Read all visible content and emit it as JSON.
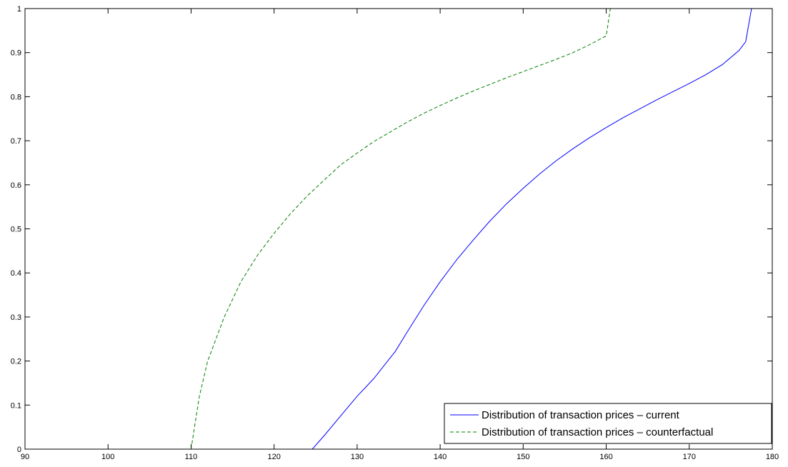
{
  "chart_data": {
    "type": "line",
    "title": "",
    "xlabel": "",
    "ylabel": "",
    "xlim": [
      90,
      180
    ],
    "ylim": [
      0,
      1
    ],
    "xticks": [
      90,
      100,
      110,
      120,
      130,
      140,
      150,
      160,
      170,
      180
    ],
    "yticks": [
      0,
      0.1,
      0.2,
      0.3,
      0.4,
      0.5,
      0.6,
      0.7,
      0.8,
      0.9,
      1
    ],
    "xtick_labels": [
      "90",
      "100",
      "110",
      "120",
      "130",
      "140",
      "150",
      "160",
      "170",
      "180"
    ],
    "ytick_labels": [
      "0",
      "0.1",
      "0.2",
      "0.3",
      "0.4",
      "0.5",
      "0.6",
      "0.7",
      "0.8",
      "0.9",
      "1"
    ],
    "grid": false,
    "legend_position": "bottom-right",
    "series": [
      {
        "name": "Distribution of transaction prices – current",
        "color": "#0000ff",
        "style": "solid",
        "points": [
          [
            90,
            0
          ],
          [
            124.6,
            0
          ],
          [
            126,
            0.03
          ],
          [
            128,
            0.075
          ],
          [
            130,
            0.12
          ],
          [
            132,
            0.16
          ],
          [
            134.6,
            0.222
          ],
          [
            136,
            0.265
          ],
          [
            138,
            0.325
          ],
          [
            140,
            0.38
          ],
          [
            142,
            0.43
          ],
          [
            144,
            0.475
          ],
          [
            146,
            0.518
          ],
          [
            148,
            0.557
          ],
          [
            150,
            0.592
          ],
          [
            152,
            0.625
          ],
          [
            154,
            0.655
          ],
          [
            156,
            0.682
          ],
          [
            158,
            0.707
          ],
          [
            160,
            0.73
          ],
          [
            162,
            0.752
          ],
          [
            164,
            0.772
          ],
          [
            166,
            0.792
          ],
          [
            168,
            0.811
          ],
          [
            170,
            0.83
          ],
          [
            172,
            0.85
          ],
          [
            174,
            0.873
          ],
          [
            176,
            0.905
          ],
          [
            176.8,
            0.925
          ],
          [
            177.5,
            1
          ]
        ]
      },
      {
        "name": "Distribution of transaction prices – counterfactual",
        "color": "#008000",
        "style": "dashed",
        "points": [
          [
            90,
            0
          ],
          [
            110,
            0
          ],
          [
            111,
            0.12
          ],
          [
            112,
            0.2
          ],
          [
            114,
            0.3
          ],
          [
            116,
            0.38
          ],
          [
            118,
            0.44
          ],
          [
            120,
            0.49
          ],
          [
            122,
            0.535
          ],
          [
            124,
            0.575
          ],
          [
            126,
            0.61
          ],
          [
            128,
            0.645
          ],
          [
            130,
            0.672
          ],
          [
            132,
            0.698
          ],
          [
            134,
            0.72
          ],
          [
            136,
            0.742
          ],
          [
            138,
            0.762
          ],
          [
            140,
            0.78
          ],
          [
            142,
            0.797
          ],
          [
            144,
            0.813
          ],
          [
            146,
            0.828
          ],
          [
            148,
            0.843
          ],
          [
            150,
            0.857
          ],
          [
            152,
            0.871
          ],
          [
            154,
            0.885
          ],
          [
            156,
            0.9
          ],
          [
            158,
            0.918
          ],
          [
            160,
            0.938
          ],
          [
            160.5,
            1
          ]
        ]
      }
    ]
  }
}
